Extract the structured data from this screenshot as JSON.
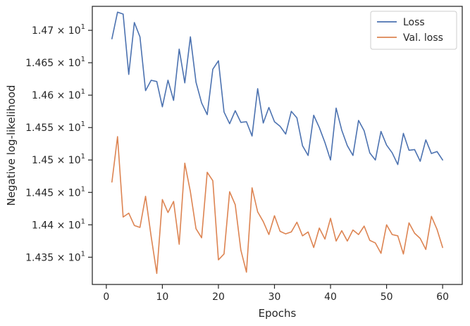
{
  "chart_data": {
    "type": "line",
    "xlabel": "Epochs",
    "ylabel": "Negative log-likelihood",
    "xlim": [
      -2.5,
      63.5
    ],
    "ylim": [
      14.308,
      14.737
    ],
    "xticks": [
      0,
      10,
      20,
      30,
      40,
      50,
      60
    ],
    "yticks": [
      {
        "value": 14.35,
        "mantissa": "1.435",
        "exp": "1"
      },
      {
        "value": 14.4,
        "mantissa": "1.44",
        "exp": "1"
      },
      {
        "value": 14.45,
        "mantissa": "1.445",
        "exp": "1"
      },
      {
        "value": 14.5,
        "mantissa": "1.45",
        "exp": "1"
      },
      {
        "value": 14.55,
        "mantissa": "1.455",
        "exp": "1"
      },
      {
        "value": 14.6,
        "mantissa": "1.46",
        "exp": "1"
      },
      {
        "value": 14.65,
        "mantissa": "1.465",
        "exp": "1"
      },
      {
        "value": 14.7,
        "mantissa": "1.47",
        "exp": "1"
      }
    ],
    "tick_times": "×",
    "tick_base": "10",
    "legend_position": "top-right",
    "series": [
      {
        "name": "Loss",
        "color": "#4c72b0",
        "x": [
          1,
          2,
          3,
          4,
          5,
          6,
          7,
          8,
          9,
          10,
          11,
          12,
          13,
          14,
          15,
          16,
          17,
          18,
          19,
          20,
          21,
          22,
          23,
          24,
          25,
          26,
          27,
          28,
          29,
          30,
          31,
          32,
          33,
          34,
          35,
          36,
          37,
          38,
          39,
          40,
          41,
          42,
          43,
          44,
          45,
          46,
          47,
          48,
          49,
          50,
          51,
          52,
          53,
          54,
          55,
          56,
          57,
          58,
          59,
          60
        ],
        "values": [
          14.687,
          14.728,
          14.725,
          14.632,
          14.712,
          14.69,
          14.607,
          14.623,
          14.621,
          14.582,
          14.623,
          14.592,
          14.671,
          14.619,
          14.69,
          14.62,
          14.588,
          14.57,
          14.64,
          14.653,
          14.574,
          14.556,
          14.576,
          14.558,
          14.559,
          14.537,
          14.61,
          14.557,
          14.581,
          14.559,
          14.552,
          14.54,
          14.575,
          14.565,
          14.522,
          14.507,
          14.569,
          14.55,
          14.527,
          14.5,
          14.58,
          14.546,
          14.522,
          14.507,
          14.561,
          14.545,
          14.511,
          14.5,
          14.544,
          14.523,
          14.511,
          14.493,
          14.541,
          14.515,
          14.516,
          14.498,
          14.531,
          14.51,
          14.513,
          14.5
        ]
      },
      {
        "name": "Val. loss",
        "color": "#dd8452",
        "x": [
          1,
          2,
          3,
          4,
          5,
          6,
          7,
          8,
          9,
          10,
          11,
          12,
          13,
          14,
          15,
          16,
          17,
          18,
          19,
          20,
          21,
          22,
          23,
          24,
          25,
          26,
          27,
          28,
          29,
          30,
          31,
          32,
          33,
          34,
          35,
          36,
          37,
          38,
          39,
          40,
          41,
          42,
          43,
          44,
          45,
          46,
          47,
          48,
          49,
          50,
          51,
          52,
          53,
          54,
          55,
          56,
          57,
          58,
          59,
          60
        ],
        "values": [
          14.466,
          14.536,
          14.412,
          14.418,
          14.399,
          14.396,
          14.444,
          14.382,
          14.325,
          14.439,
          14.419,
          14.436,
          14.37,
          14.495,
          14.451,
          14.394,
          14.38,
          14.481,
          14.468,
          14.346,
          14.355,
          14.451,
          14.431,
          14.361,
          14.327,
          14.457,
          14.42,
          14.405,
          14.385,
          14.414,
          14.39,
          14.386,
          14.389,
          14.404,
          14.383,
          14.389,
          14.365,
          14.395,
          14.378,
          14.41,
          14.375,
          14.391,
          14.375,
          14.392,
          14.385,
          14.398,
          14.376,
          14.372,
          14.356,
          14.4,
          14.385,
          14.383,
          14.355,
          14.403,
          14.387,
          14.379,
          14.362,
          14.413,
          14.393,
          14.365
        ]
      }
    ]
  }
}
